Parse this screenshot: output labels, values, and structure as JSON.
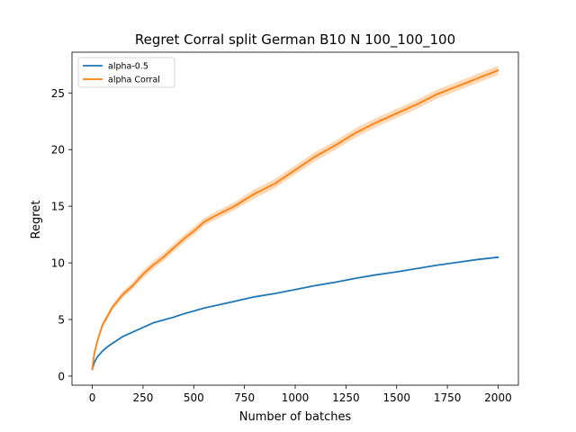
{
  "chart_data": {
    "type": "line",
    "title": "Regret Corral split German B10 N 100_100_100",
    "xlabel": "Number of batches",
    "ylabel": "Regret",
    "xlim": [
      -100,
      2100
    ],
    "ylim": [
      -0.8,
      28.6
    ],
    "xticks": [
      0,
      250,
      500,
      750,
      1000,
      1250,
      1500,
      1750,
      2000
    ],
    "yticks": [
      0,
      5,
      10,
      15,
      20,
      25
    ],
    "grid": false,
    "legend_position": "top-left",
    "series": [
      {
        "name": "alpha-0.5",
        "color": "#1f77b4",
        "band": false,
        "x": [
          0,
          10,
          25,
          50,
          75,
          100,
          125,
          150,
          200,
          250,
          300,
          350,
          400,
          450,
          500,
          550,
          600,
          700,
          800,
          900,
          1000,
          1100,
          1200,
          1300,
          1400,
          1500,
          1600,
          1700,
          1800,
          1900,
          2000
        ],
        "y": [
          0.6,
          1.2,
          1.7,
          2.2,
          2.6,
          2.9,
          3.2,
          3.5,
          3.9,
          4.3,
          4.7,
          4.95,
          5.2,
          5.5,
          5.75,
          6.0,
          6.2,
          6.6,
          7.0,
          7.3,
          7.65,
          8.0,
          8.3,
          8.65,
          8.95,
          9.2,
          9.5,
          9.8,
          10.05,
          10.3,
          10.5
        ]
      },
      {
        "name": "alpha Corral",
        "color": "#ff7f0e",
        "band": true,
        "x": [
          0,
          10,
          25,
          50,
          75,
          100,
          150,
          200,
          250,
          300,
          350,
          400,
          450,
          500,
          550,
          600,
          700,
          800,
          900,
          1000,
          1100,
          1200,
          1300,
          1400,
          1500,
          1600,
          1700,
          1800,
          1900,
          2000
        ],
        "y": [
          0.6,
          2.0,
          3.1,
          4.5,
          5.3,
          6.1,
          7.2,
          8.0,
          9.0,
          9.8,
          10.5,
          11.3,
          12.1,
          12.8,
          13.6,
          14.1,
          15.0,
          16.1,
          17.0,
          18.2,
          19.4,
          20.4,
          21.5,
          22.4,
          23.2,
          24.0,
          24.9,
          25.6,
          26.3,
          27.0
        ],
        "band_halfwidth": [
          0.05,
          0.15,
          0.2,
          0.25,
          0.25,
          0.25,
          0.3,
          0.3,
          0.35,
          0.35,
          0.35,
          0.35,
          0.35,
          0.35,
          0.35,
          0.35,
          0.35,
          0.4,
          0.4,
          0.4,
          0.4,
          0.4,
          0.4,
          0.4,
          0.4,
          0.4,
          0.4,
          0.4,
          0.4,
          0.4
        ]
      }
    ]
  }
}
